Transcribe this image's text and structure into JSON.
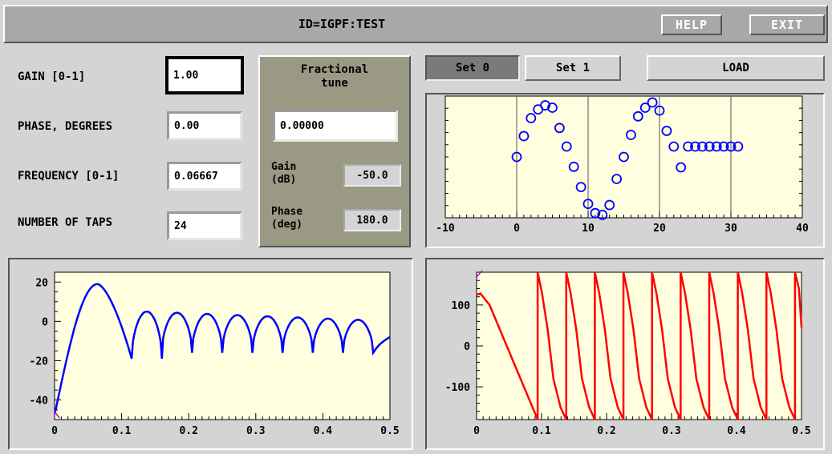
{
  "title": "ID=IGPF:TEST",
  "buttons": {
    "help": "HELP",
    "exit": "EXIT",
    "load": "LOAD",
    "set0": "Set 0",
    "set1": "Set 1"
  },
  "params": {
    "gain_label": "GAIN [0-1]",
    "gain_value": "1.00",
    "phase_label": "PHASE, DEGREES",
    "phase_value": "0.00",
    "freq_label": "FREQUENCY [0-1]",
    "freq_value": "0.06667",
    "taps_label": "NUMBER OF TAPS",
    "taps_value": "24"
  },
  "fractional": {
    "title_line1": "Fractional",
    "title_line2": "tune",
    "value": "0.00000",
    "gain_label_1": "Gain",
    "gain_label_2": "(dB)",
    "gain_value": "-50.0",
    "phase_label_1": "Phase",
    "phase_label_2": "(deg)",
    "phase_value": "180.0"
  },
  "colors": {
    "plot_bg": "#ffffe0",
    "taps": "#0000ff",
    "magnitude": "#0000ff",
    "phase": "#ff0000",
    "cursor": "#cc00cc"
  },
  "chart_data": [
    {
      "type": "scatter",
      "xlim": [
        -10,
        40
      ],
      "ylim": [
        -1.05,
        1.05
      ],
      "xticks": [
        -10,
        0,
        10,
        20,
        30,
        40
      ],
      "grid_x": [
        0,
        10,
        20,
        30
      ],
      "x": [
        0,
        1,
        2,
        3,
        4,
        5,
        6,
        7,
        8,
        9,
        10,
        11,
        12,
        13,
        14,
        15,
        16,
        17,
        18,
        19,
        20,
        21,
        22,
        23,
        24,
        25,
        26,
        27,
        28,
        29,
        30,
        31
      ],
      "y": [
        0.0,
        0.36,
        0.67,
        0.82,
        0.89,
        0.85,
        0.5,
        0.18,
        -0.17,
        -0.52,
        -0.81,
        -0.97,
        -1.0,
        -0.83,
        -0.38,
        0.0,
        0.38,
        0.7,
        0.85,
        0.94,
        0.8,
        0.45,
        0.18,
        -0.18,
        0.18,
        0.18,
        0.18,
        0.18,
        0.18,
        0.18,
        0.18,
        0.18
      ]
    },
    {
      "type": "line",
      "xlim": [
        0,
        0.5
      ],
      "ylim": [
        -50,
        25
      ],
      "xticks": [
        0,
        0.1,
        0.2,
        0.3,
        0.4,
        0.5
      ],
      "xticklabels": [
        "0",
        "0.1",
        "0.2",
        "0.3",
        "0.4",
        "0.5"
      ],
      "yticks": [
        20,
        0,
        -20,
        -40
      ],
      "nulls": [
        0.115,
        0.16,
        0.205,
        0.25,
        0.295,
        0.34,
        0.385,
        0.43,
        0.475
      ],
      "main_lobe_peak": [
        0.064,
        19
      ]
    },
    {
      "type": "line",
      "xlim": [
        0,
        0.5
      ],
      "ylim": [
        -180,
        180
      ],
      "xticks": [
        0,
        0.1,
        0.2,
        0.3,
        0.4,
        0.5
      ],
      "xticklabels": [
        "0",
        "0.1",
        "0.2",
        "0.3",
        "0.4",
        "0.5"
      ],
      "yticks": [
        100,
        0,
        -100
      ],
      "jumps": [
        0.094,
        0.138,
        0.182,
        0.226,
        0.27,
        0.314,
        0.358,
        0.402,
        0.446,
        0.49
      ]
    }
  ]
}
